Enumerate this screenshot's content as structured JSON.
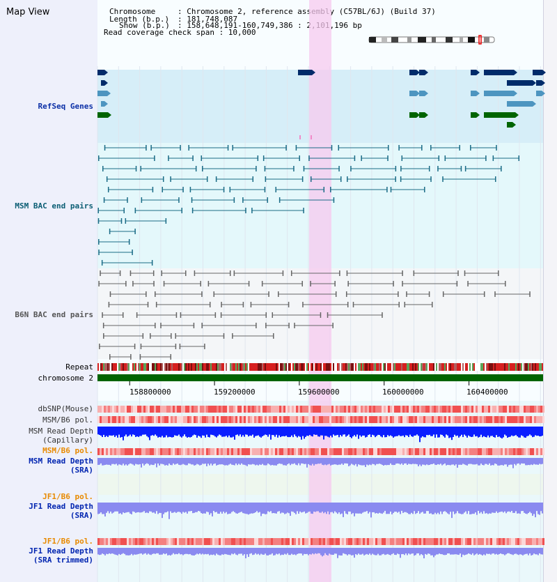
{
  "title": "Map View",
  "info": {
    "chromosome_key": "Chromosome",
    "chromosome_value": ": Chromosome 2, reference assembly (C57BL/6J) (Build 37)",
    "length_key": "Length (b.p.)",
    "length_value": ": 181,748,087",
    "show_key": "Show (b.p.)",
    "show_value": ": 158,648,191-160,749,386 : 2,101,196 bp",
    "coverage": "Read coverage check span : 10,000"
  },
  "tracks": {
    "refseq": "RefSeq Genes",
    "msm_bac": "MSM BAC end pairs",
    "b6n_bac": "B6N BAC end pairs",
    "repeat": "Repeat",
    "chromosome": "chromosome 2",
    "dbsnp": "dbSNP(Mouse)",
    "msm_b6_pol_1": "MSM/B6 pol.",
    "msm_read_depth_cap_1": "MSM Read Depth",
    "msm_read_depth_cap_2": "(Capillary)",
    "msm_b6_pol_2": "MSM/B6 pol.",
    "msm_read_depth_sra_1": "MSM Read Depth",
    "msm_read_depth_sra_2": "(SRA)",
    "jf1_b6_pol_1": "JF1/B6 pol.",
    "jf1_read_depth_sra_1": "JF1 Read Depth",
    "jf1_read_depth_sra_2": "(SRA)",
    "jf1_b6_pol_2": "JF1/B6 pol.",
    "jf1_read_depth_trim_1": "JF1 Read Depth",
    "jf1_read_depth_trim_2": "(SRA trimmed)"
  },
  "axis": {
    "ticks": [
      "158800000",
      "159200000",
      "159600000",
      "160000000",
      "160400000"
    ],
    "tick_values": [
      158800000,
      159200000,
      159600000,
      160000000,
      160400000
    ],
    "range": [
      158648191,
      160749386
    ]
  },
  "highlight": {
    "start": 159600000,
    "end": 159700000
  },
  "colors": {
    "refseq_navy": "#002b6a",
    "refseq_light": "#4d95c0",
    "refseq_green": "#006400",
    "msm": "#1a6b86",
    "b6n": "#666666",
    "highlight": "#f7c9ef",
    "chrom": "#006400",
    "depth_cap": "#0a1fff",
    "depth_sra": "#8a8af0"
  }
}
